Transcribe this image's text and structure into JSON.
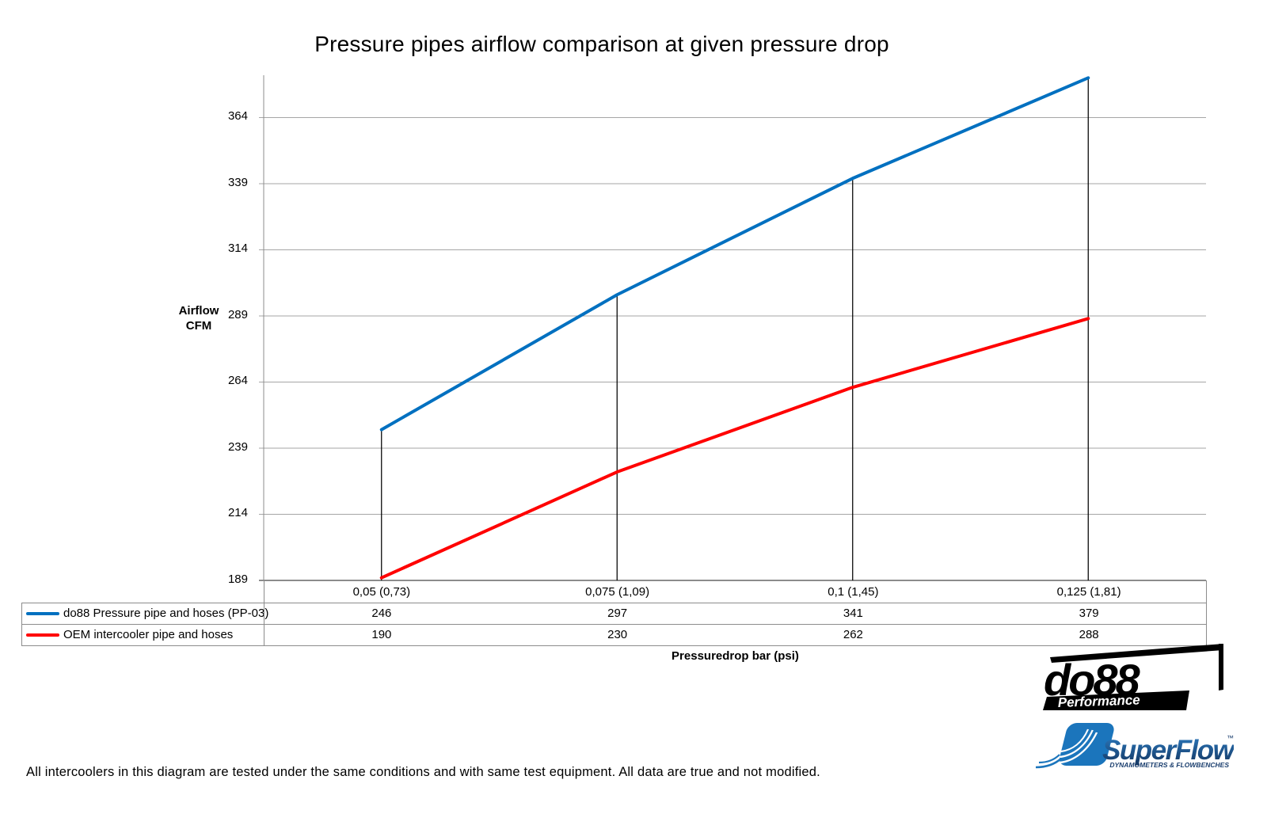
{
  "title": "Pressure pipes airflow comparison at given pressure drop",
  "chart_data": {
    "type": "line",
    "categories": [
      "0,05 (0,73)",
      "0,075 (1,09)",
      "0,1 (1,45)",
      "0,125 (1,81)"
    ],
    "series": [
      {
        "name": "do88 Pressure pipe and hoses (PP-03)",
        "values": [
          246,
          297,
          341,
          379
        ],
        "color": "#0070C0"
      },
      {
        "name": "OEM intercooler pipe and hoses",
        "values": [
          190,
          230,
          262,
          288
        ],
        "color": "#FF0000"
      }
    ],
    "title": "Pressure pipes airflow comparison at given pressure drop",
    "xlabel": "Pressuredrop bar (psi)",
    "ylabel": "Airflow CFM",
    "ylabel_lines": [
      "Airflow",
      "CFM"
    ],
    "yticks": [
      189,
      214,
      239,
      264,
      289,
      314,
      339,
      364
    ],
    "ylim": [
      189,
      380
    ],
    "grid": true,
    "drop_lines": true,
    "legend_position": "table-left"
  },
  "colors": {
    "grid": "#a6a6a6",
    "axis": "#8c8c8c",
    "drop_line": "#000000",
    "series_blue": "#0070C0",
    "series_red": "#FF0000"
  },
  "footer": "All intercoolers in this diagram are tested under the same conditions and with same test equipment. All data are true and not modified.",
  "logos": {
    "do88": {
      "text": "do88",
      "subtext": "Performance"
    },
    "superflow": {
      "text": "SuperFlow",
      "tm": "™",
      "subtext": "DYNAMOMETERS & FLOWBENCHES"
    }
  }
}
